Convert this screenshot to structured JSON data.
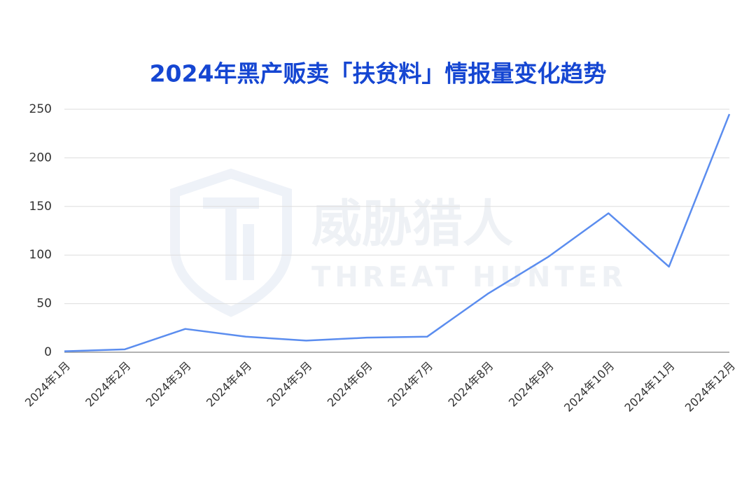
{
  "chart_data": {
    "type": "line",
    "title": "2024年黑产贩卖「扶贫料」情报量变化趋势",
    "watermark": {
      "brand": "威胁猎人",
      "brand_en": "THREAT HUNTER"
    },
    "categories": [
      "2024年1月",
      "2024年2月",
      "2024年3月",
      "2024年4月",
      "2024年5月",
      "2024年6月",
      "2024年7月",
      "2024年8月",
      "2024年9月",
      "2024年10月",
      "2024年11月",
      "2024年12月"
    ],
    "values": [
      1,
      3,
      24,
      16,
      12,
      15,
      16,
      60,
      98,
      143,
      88,
      245
    ],
    "color": "#5b8def",
    "ylim": [
      0,
      250
    ],
    "yticks": [
      0,
      50,
      100,
      150,
      200,
      250
    ],
    "grid": true
  }
}
